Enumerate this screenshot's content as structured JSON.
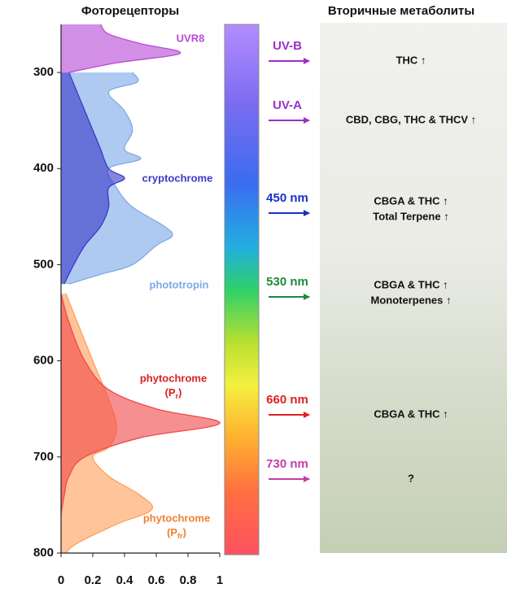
{
  "chart_data": {
    "type": "area",
    "title": "Фоторецепторы",
    "xlim": [
      0,
      1
    ],
    "xticks": [
      0,
      0.2,
      0.4,
      0.6,
      0.8,
      1
    ],
    "ylim": [
      800,
      250
    ],
    "yticks": [
      300,
      400,
      500,
      600,
      700,
      800
    ],
    "series": [
      {
        "name": "phototropin",
        "color": "#7ea9e6",
        "x": [
          300,
          310,
          320,
          340,
          360,
          380,
          390,
          400,
          420,
          440,
          460,
          470,
          480,
          500,
          510,
          520
        ],
        "values": [
          0.45,
          0.48,
          0.3,
          0.4,
          0.45,
          0.4,
          0.5,
          0.3,
          0.35,
          0.45,
          0.65,
          0.7,
          0.6,
          0.45,
          0.25,
          0.05
        ]
      },
      {
        "name": "cryptochrome",
        "color": "#3a3ac8",
        "x": [
          300,
          320,
          340,
          360,
          380,
          400,
          410,
          420,
          440,
          460,
          480,
          500,
          520
        ],
        "values": [
          0.05,
          0.1,
          0.15,
          0.2,
          0.25,
          0.3,
          0.4,
          0.3,
          0.3,
          0.25,
          0.15,
          0.08,
          0.02
        ]
      },
      {
        "name": "UVR8",
        "color": "#b84ad6",
        "x": [
          250,
          260,
          270,
          280,
          290,
          300
        ],
        "values": [
          0.25,
          0.3,
          0.5,
          0.75,
          0.35,
          0.05
        ]
      },
      {
        "name": [
          "phytochrome",
          "(P",
          "fr",
          ")"
        ],
        "color": "#ffa05a",
        "x": [
          530,
          600,
          640,
          670,
          690,
          700,
          720,
          740,
          755,
          770,
          790,
          800
        ],
        "values": [
          0.03,
          0.2,
          0.3,
          0.35,
          0.3,
          0.2,
          0.3,
          0.5,
          0.57,
          0.35,
          0.1,
          0.03
        ]
      },
      {
        "name": [
          "phytochrome",
          "(P",
          "r",
          ")"
        ],
        "color": "#f04a4a",
        "x": [
          530,
          560,
          600,
          630,
          650,
          665,
          680,
          700,
          720,
          740,
          760
        ],
        "values": [
          0,
          0.05,
          0.15,
          0.3,
          0.6,
          1,
          0.5,
          0.15,
          0.05,
          0.02,
          0
        ]
      }
    ]
  },
  "metabolites": {
    "title": "Вторичные метаболиты",
    "bands": [
      {
        "label": "UV-B",
        "color": "#9b30c8",
        "effect": [
          "THC ↑"
        ]
      },
      {
        "label": "UV-A",
        "color": "#9b30c8",
        "effect": [
          "CBD, CBG, THC & THCV ↑"
        ]
      },
      {
        "label": "450 nm",
        "color": "#1a2fc8",
        "effect": [
          "CBGA & THC ↑",
          "Total Terpene ↑"
        ]
      },
      {
        "label": "530 nm",
        "color": "#1f8a3a",
        "effect": [
          "CBGA & THC ↑",
          "Monoterpenes ↑"
        ]
      },
      {
        "label": "660 nm",
        "color": "#e02020",
        "effect": [
          "CBGA & THC ↑"
        ]
      },
      {
        "label": "730 nm",
        "color": "#c040a8",
        "effect": [
          "?"
        ]
      }
    ]
  }
}
